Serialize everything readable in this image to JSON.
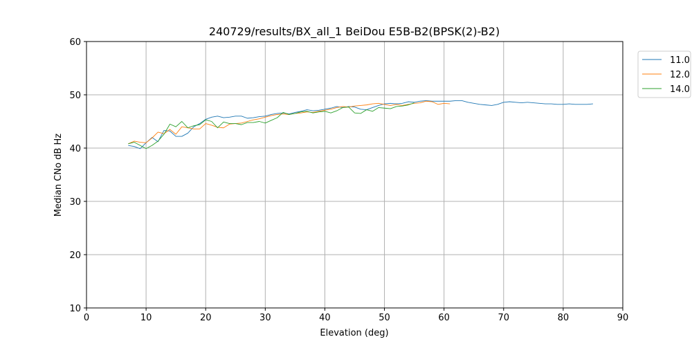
{
  "chart_data": {
    "type": "line",
    "title": "240729/results/BX_all_1 BeiDou E5B-B2(BPSK(2)-B2)",
    "xlabel": "Elevation (deg)",
    "ylabel": "Median CNo dB Hz",
    "xlim": [
      0,
      90
    ],
    "ylim": [
      10,
      60
    ],
    "xticks": [
      0,
      10,
      20,
      30,
      40,
      50,
      60,
      70,
      80,
      90
    ],
    "yticks": [
      10,
      20,
      30,
      40,
      50,
      60
    ],
    "grid": true,
    "legend_position": "outside-top-right",
    "series": [
      {
        "name": "11.0",
        "color": "#1f77b4",
        "points": [
          [
            7,
            40.5
          ],
          [
            8,
            40.3
          ],
          [
            9,
            39.9
          ],
          [
            10,
            41.0
          ],
          [
            11,
            42.0
          ],
          [
            12,
            41.2
          ],
          [
            13,
            43.3
          ],
          [
            14,
            43.2
          ],
          [
            15,
            42.2
          ],
          [
            16,
            42.2
          ],
          [
            17,
            42.8
          ],
          [
            18,
            44.0
          ],
          [
            19,
            44.6
          ],
          [
            20,
            45.4
          ],
          [
            21,
            45.8
          ],
          [
            22,
            46.0
          ],
          [
            23,
            45.7
          ],
          [
            24,
            45.8
          ],
          [
            25,
            46.0
          ],
          [
            26,
            46.0
          ],
          [
            27,
            45.6
          ],
          [
            28,
            45.7
          ],
          [
            29,
            45.9
          ],
          [
            30,
            46.0
          ],
          [
            31,
            46.3
          ],
          [
            32,
            46.5
          ],
          [
            33,
            46.6
          ],
          [
            34,
            46.4
          ],
          [
            35,
            46.7
          ],
          [
            36,
            46.9
          ],
          [
            37,
            47.2
          ],
          [
            38,
            47.0
          ],
          [
            39,
            47.1
          ],
          [
            40,
            47.3
          ],
          [
            41,
            47.5
          ],
          [
            42,
            47.8
          ],
          [
            43,
            47.6
          ],
          [
            44,
            47.8
          ],
          [
            45,
            47.7
          ],
          [
            46,
            47.3
          ],
          [
            47,
            47.2
          ],
          [
            48,
            47.6
          ],
          [
            49,
            48.0
          ],
          [
            50,
            48.3
          ],
          [
            51,
            48.4
          ],
          [
            52,
            48.3
          ],
          [
            53,
            48.4
          ],
          [
            54,
            48.7
          ],
          [
            55,
            48.6
          ],
          [
            56,
            48.8
          ],
          [
            57,
            48.9
          ],
          [
            58,
            48.8
          ],
          [
            59,
            48.8
          ],
          [
            60,
            48.8
          ],
          [
            61,
            48.8
          ],
          [
            62,
            48.9
          ],
          [
            63,
            48.9
          ],
          [
            64,
            48.6
          ],
          [
            65,
            48.4
          ],
          [
            66,
            48.2
          ],
          [
            67,
            48.1
          ],
          [
            68,
            48.0
          ],
          [
            69,
            48.2
          ],
          [
            70,
            48.6
          ],
          [
            71,
            48.7
          ],
          [
            72,
            48.6
          ],
          [
            73,
            48.5
          ],
          [
            74,
            48.6
          ],
          [
            75,
            48.5
          ],
          [
            76,
            48.4
          ],
          [
            77,
            48.3
          ],
          [
            78,
            48.3
          ],
          [
            79,
            48.2
          ],
          [
            80,
            48.2
          ],
          [
            81,
            48.3
          ],
          [
            82,
            48.2
          ],
          [
            83,
            48.2
          ],
          [
            84,
            48.2
          ],
          [
            85,
            48.3
          ]
        ]
      },
      {
        "name": "12.0",
        "color": "#ff7f0e",
        "points": [
          [
            7,
            40.8
          ],
          [
            8,
            41.3
          ],
          [
            9,
            41.1
          ],
          [
            10,
            41.0
          ],
          [
            11,
            41.9
          ],
          [
            12,
            43.0
          ],
          [
            13,
            42.7
          ],
          [
            14,
            43.5
          ],
          [
            15,
            42.6
          ],
          [
            16,
            44.0
          ],
          [
            17,
            43.8
          ],
          [
            18,
            43.6
          ],
          [
            19,
            43.6
          ],
          [
            20,
            44.6
          ],
          [
            21,
            44.3
          ],
          [
            22,
            43.9
          ],
          [
            23,
            43.8
          ],
          [
            24,
            44.5
          ],
          [
            25,
            44.6
          ],
          [
            26,
            44.7
          ],
          [
            27,
            45.0
          ],
          [
            28,
            45.3
          ],
          [
            29,
            45.5
          ],
          [
            30,
            45.8
          ],
          [
            31,
            46.1
          ],
          [
            32,
            46.3
          ],
          [
            33,
            46.4
          ],
          [
            34,
            46.3
          ],
          [
            35,
            46.5
          ],
          [
            36,
            46.6
          ],
          [
            37,
            46.8
          ],
          [
            38,
            46.7
          ],
          [
            39,
            46.9
          ],
          [
            40,
            47.1
          ],
          [
            41,
            47.3
          ],
          [
            42,
            47.6
          ],
          [
            43,
            47.8
          ],
          [
            44,
            47.7
          ],
          [
            45,
            47.9
          ],
          [
            46,
            48.0
          ],
          [
            47,
            48.1
          ],
          [
            48,
            48.3
          ],
          [
            49,
            48.4
          ],
          [
            50,
            48.2
          ],
          [
            51,
            48.0
          ],
          [
            52,
            48.2
          ],
          [
            53,
            48.0
          ],
          [
            54,
            48.2
          ],
          [
            55,
            48.4
          ],
          [
            56,
            48.5
          ],
          [
            57,
            48.8
          ],
          [
            58,
            48.7
          ],
          [
            59,
            48.2
          ],
          [
            60,
            48.4
          ],
          [
            61,
            48.3
          ]
        ]
      },
      {
        "name": "14.0",
        "color": "#2ca02c",
        "points": [
          [
            7,
            40.8
          ],
          [
            8,
            41.1
          ],
          [
            9,
            40.5
          ],
          [
            10,
            39.9
          ],
          [
            11,
            40.5
          ],
          [
            12,
            41.3
          ],
          [
            13,
            42.6
          ],
          [
            14,
            44.5
          ],
          [
            15,
            44.0
          ],
          [
            16,
            45.0
          ],
          [
            17,
            43.8
          ],
          [
            18,
            44.2
          ],
          [
            19,
            44.4
          ],
          [
            20,
            45.3
          ],
          [
            21,
            45.0
          ],
          [
            22,
            43.8
          ],
          [
            23,
            44.9
          ],
          [
            24,
            44.6
          ],
          [
            25,
            44.6
          ],
          [
            26,
            44.4
          ],
          [
            27,
            44.8
          ],
          [
            28,
            44.8
          ],
          [
            29,
            45.0
          ],
          [
            30,
            44.7
          ],
          [
            31,
            45.2
          ],
          [
            32,
            45.7
          ],
          [
            33,
            46.7
          ],
          [
            34,
            46.3
          ],
          [
            35,
            46.5
          ],
          [
            36,
            46.8
          ],
          [
            37,
            46.9
          ],
          [
            38,
            46.6
          ],
          [
            39,
            46.8
          ],
          [
            40,
            46.9
          ],
          [
            41,
            46.6
          ],
          [
            42,
            47.0
          ],
          [
            43,
            47.6
          ],
          [
            44,
            47.7
          ],
          [
            45,
            46.6
          ],
          [
            46,
            46.5
          ],
          [
            47,
            47.2
          ],
          [
            48,
            46.9
          ],
          [
            49,
            47.6
          ],
          [
            50,
            47.5
          ],
          [
            51,
            47.4
          ],
          [
            52,
            47.8
          ],
          [
            53,
            47.9
          ],
          [
            54,
            48.1
          ],
          [
            55,
            48.5
          ]
        ]
      }
    ]
  }
}
